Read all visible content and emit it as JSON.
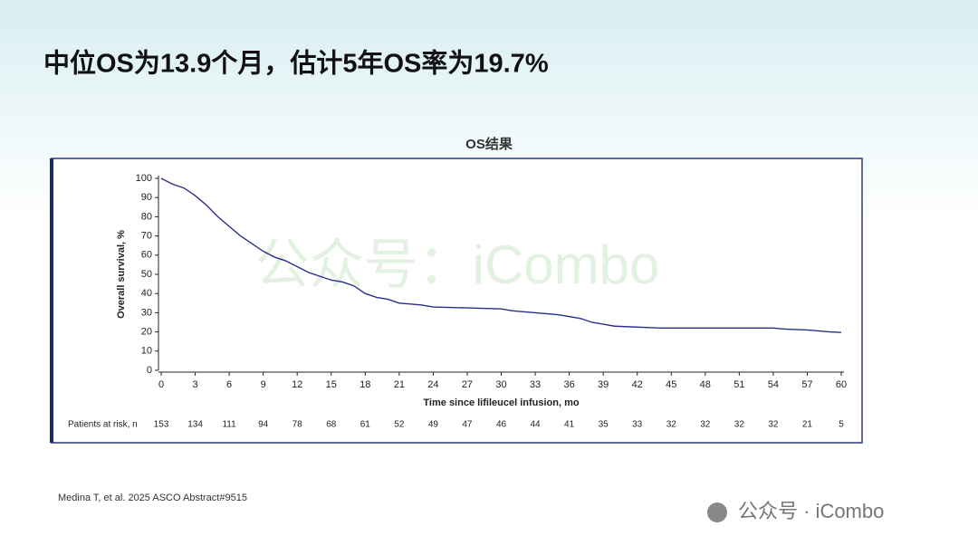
{
  "header": {
    "title": "中位OS为13.9个月，估计5年OS率为19.7%"
  },
  "chart_data": {
    "type": "line",
    "title": "OS结果",
    "x_label": "Time since lifileucel infusion, mo",
    "y_label": "Overall survival, %",
    "xlim": [
      0,
      60
    ],
    "ylim": [
      0,
      100
    ],
    "xticks": [
      0,
      3,
      6,
      9,
      12,
      15,
      18,
      21,
      24,
      27,
      30,
      33,
      36,
      39,
      42,
      45,
      48,
      51,
      54,
      57,
      60
    ],
    "yticks": [
      0,
      10,
      20,
      30,
      40,
      50,
      60,
      70,
      80,
      90,
      100
    ],
    "series": [
      {
        "color": "#2b2f8a",
        "x": [
          0,
          1,
          2,
          3,
          4,
          5,
          6,
          7,
          8,
          9,
          10,
          11,
          12,
          13,
          14,
          15,
          16,
          17,
          18,
          19,
          20,
          21,
          22,
          23,
          24,
          27,
          30,
          31,
          33,
          35,
          37,
          38,
          39,
          40,
          44,
          54,
          55,
          57,
          59,
          60
        ],
        "y": [
          100,
          97,
          95,
          91,
          86,
          80,
          75,
          70,
          66,
          62,
          59,
          57,
          54,
          51,
          49,
          47,
          46,
          44,
          40,
          38,
          37,
          35,
          34.5,
          34,
          33,
          32.5,
          32,
          31,
          30,
          29,
          27,
          25,
          24,
          23,
          22,
          22,
          21.5,
          21,
          20,
          19.7
        ]
      }
    ],
    "at_risk": {
      "label": "Patients at risk, n",
      "values": [
        153,
        134,
        111,
        94,
        78,
        68,
        61,
        52,
        49,
        47,
        46,
        44,
        41,
        35,
        33,
        32,
        32,
        32,
        32,
        21,
        5
      ]
    }
  },
  "watermark": "公众号：iCombo",
  "footnote": "Medina T, et al. 2025 ASCO  Abstract#9515",
  "logo_text": "公众号 · iCombo"
}
